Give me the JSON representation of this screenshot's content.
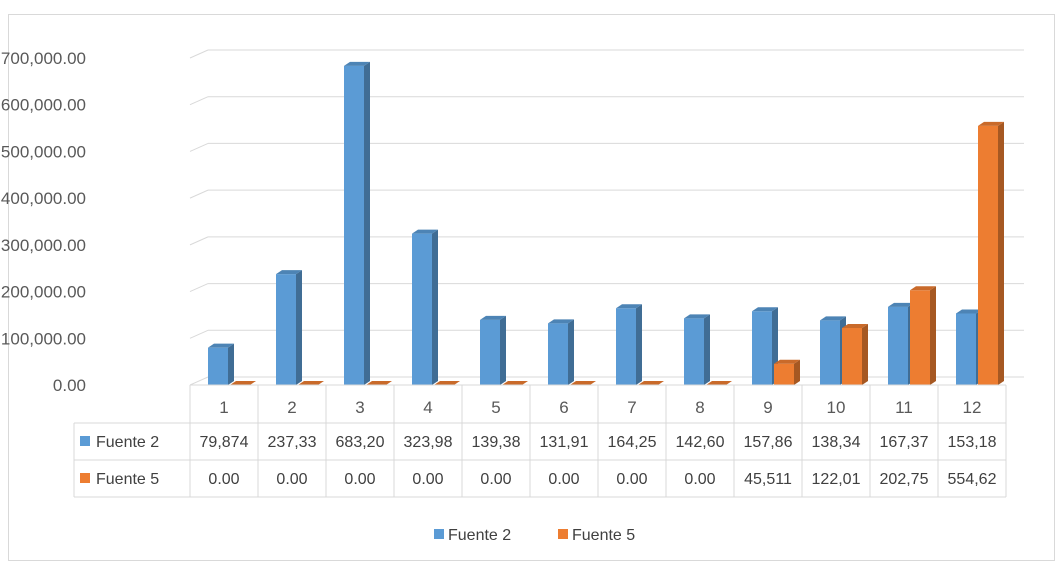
{
  "chart_data": {
    "type": "bar",
    "categories": [
      "1",
      "2",
      "3",
      "4",
      "5",
      "6",
      "7",
      "8",
      "9",
      "10",
      "11",
      "12"
    ],
    "series": [
      {
        "name": "Fuente 2",
        "color": "#5b9bd5",
        "values": [
          79874,
          237330,
          683200,
          323980,
          139380,
          131910,
          164250,
          142600,
          157860,
          138340,
          167370,
          153180
        ],
        "cell_labels": [
          "79,874",
          "237,33",
          "683,20",
          "323,98",
          "139,38",
          "131,91",
          "164,25",
          "142,60",
          "157,86",
          "138,34",
          "167,37",
          "153,18"
        ]
      },
      {
        "name": "Fuente 5",
        "color": "#ed7d31",
        "values": [
          0,
          0,
          0,
          0,
          0,
          0,
          0,
          0,
          45511,
          122010,
          202750,
          554620
        ],
        "cell_labels": [
          "0.00",
          "0.00",
          "0.00",
          "0.00",
          "0.00",
          "0.00",
          "0.00",
          "0.00",
          "45,511",
          "122,01",
          "202,75",
          "554,62"
        ]
      }
    ],
    "y_ticks": [
      "0.00",
      "100,000.00",
      "200,000.00",
      "300,000.00",
      "400,000.00",
      "500,000.00",
      "600,000.00",
      "700,000.00"
    ],
    "ylim": [
      0,
      700000
    ],
    "grid": true,
    "legend_position": "bottom",
    "data_table": true
  }
}
